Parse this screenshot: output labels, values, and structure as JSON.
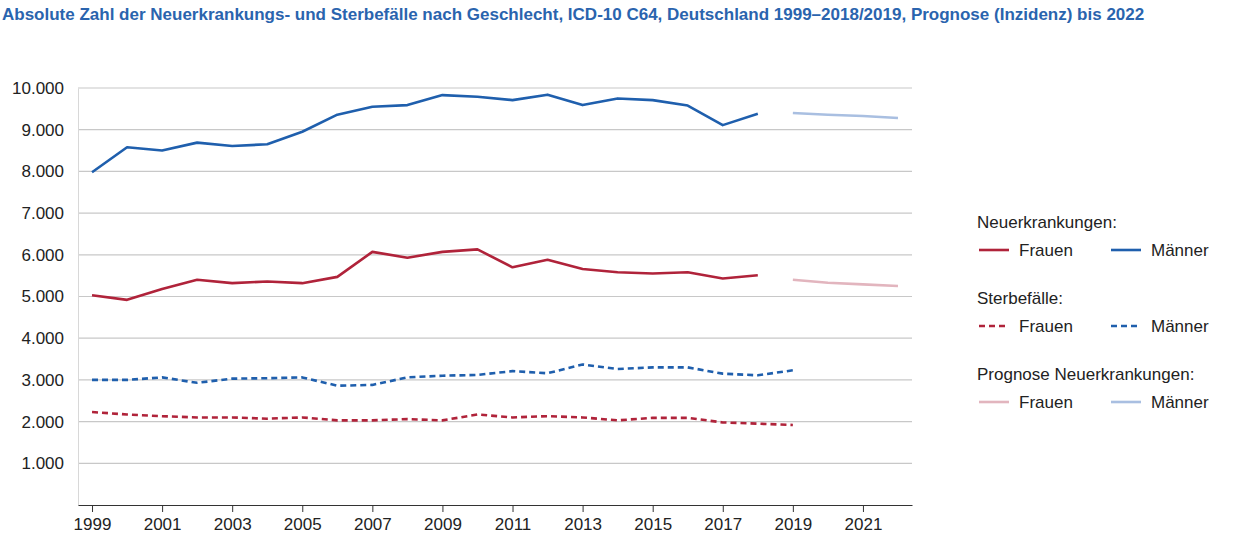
{
  "chart_data": {
    "type": "line",
    "title": "Absolute Zahl der Neuerkrankungs- und Sterbefälle nach Geschlecht, ICD-10 C64, Deutschland 1999–2018/2019, Prognose (Inzidenz) bis 2022",
    "xlim": [
      1998.6,
      2022.4
    ],
    "xticks": [
      1999,
      2001,
      2003,
      2005,
      2007,
      2009,
      2011,
      2013,
      2015,
      2017,
      2019,
      2021
    ],
    "ylim": [
      0,
      10000
    ],
    "yticks": [
      {
        "value": 1000,
        "label": "1.000"
      },
      {
        "value": 2000,
        "label": "2.000"
      },
      {
        "value": 3000,
        "label": "3.000"
      },
      {
        "value": 4000,
        "label": "4.000"
      },
      {
        "value": 5000,
        "label": "5.000"
      },
      {
        "value": 6000,
        "label": "6.000"
      },
      {
        "value": 7000,
        "label": "7.000"
      },
      {
        "value": 8000,
        "label": "8.000"
      },
      {
        "value": 9000,
        "label": "9.000"
      },
      {
        "value": 10000,
        "label": "10.000"
      }
    ],
    "grid": true,
    "legend": "right",
    "series": [
      {
        "name": "Frauen",
        "group": "Neuerkrankungen:",
        "color": "#b0233a",
        "line_style": "solid",
        "x": [
          1999,
          2000,
          2001,
          2002,
          2003,
          2004,
          2005,
          2006,
          2007,
          2008,
          2009,
          2010,
          2011,
          2012,
          2013,
          2014,
          2015,
          2016,
          2017,
          2018
        ],
        "values": [
          5030,
          4920,
          5180,
          5400,
          5320,
          5360,
          5320,
          5470,
          6070,
          5930,
          6070,
          6130,
          5700,
          5880,
          5660,
          5580,
          5550,
          5580,
          5430,
          5510
        ]
      },
      {
        "name": "Männer",
        "group": "Neuerkrankungen:",
        "color": "#1f5fad",
        "line_style": "solid",
        "x": [
          1999,
          2000,
          2001,
          2002,
          2003,
          2004,
          2005,
          2006,
          2007,
          2008,
          2009,
          2010,
          2011,
          2012,
          2013,
          2014,
          2015,
          2016,
          2017,
          2018
        ],
        "values": [
          7980,
          8580,
          8500,
          8690,
          8610,
          8650,
          8950,
          9360,
          9550,
          9590,
          9830,
          9790,
          9710,
          9840,
          9590,
          9750,
          9710,
          9580,
          9110,
          9380
        ]
      },
      {
        "name": "Frauen",
        "group": "Sterbefälle:",
        "color": "#b0233a",
        "line_style": "dashed",
        "x": [
          1999,
          2000,
          2001,
          2002,
          2003,
          2004,
          2005,
          2006,
          2007,
          2008,
          2009,
          2010,
          2011,
          2012,
          2013,
          2014,
          2015,
          2016,
          2017,
          2018,
          2019
        ],
        "values": [
          2230,
          2170,
          2130,
          2100,
          2100,
          2070,
          2100,
          2030,
          2030,
          2060,
          2030,
          2170,
          2100,
          2130,
          2100,
          2030,
          2090,
          2090,
          1980,
          1950,
          1920
        ]
      },
      {
        "name": "Männer",
        "group": "Sterbefälle:",
        "color": "#1f5fad",
        "line_style": "dashed",
        "x": [
          1999,
          2000,
          2001,
          2002,
          2003,
          2004,
          2005,
          2006,
          2007,
          2008,
          2009,
          2010,
          2011,
          2012,
          2013,
          2014,
          2015,
          2016,
          2017,
          2018,
          2019
        ],
        "values": [
          3000,
          3000,
          3060,
          2930,
          3030,
          3040,
          3060,
          2860,
          2880,
          3060,
          3100,
          3120,
          3210,
          3160,
          3370,
          3260,
          3300,
          3300,
          3150,
          3110,
          3230
        ]
      },
      {
        "name": "Frauen",
        "group": "Prognose Neuerkrankungen:",
        "color": "#e2b5be",
        "line_style": "solid",
        "x": [
          2019,
          2020,
          2021,
          2022
        ],
        "values": [
          5400,
          5330,
          5290,
          5250
        ]
      },
      {
        "name": "Männer",
        "group": "Prognose Neuerkrankungen:",
        "color": "#a9bfe1",
        "line_style": "solid",
        "x": [
          2019,
          2020,
          2021,
          2022
        ],
        "values": [
          9400,
          9360,
          9330,
          9280
        ]
      }
    ]
  }
}
